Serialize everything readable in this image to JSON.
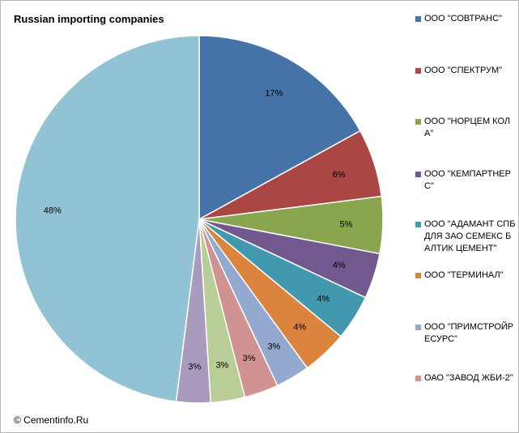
{
  "title": "Russian importing companies",
  "copyright": "© Cementinfo.Ru",
  "chart_data": {
    "type": "pie",
    "title": "Russian importing companies",
    "legend_position": "right",
    "slices": [
      {
        "name": "ООО \"СОВТРАНС\"",
        "value": 17,
        "label": "17%",
        "color": "#4572a7"
      },
      {
        "name": "ООО \"СПЕКТРУМ\"",
        "value": 6,
        "label": "6%",
        "color": "#aa4643"
      },
      {
        "name": "ООО \"НОРЦЕМ КОЛА\"",
        "value": 5,
        "label": "5%",
        "color": "#89a54e"
      },
      {
        "name": "ООО \"КЕМПАРТНЕРС\"",
        "value": 4,
        "label": "4%",
        "color": "#71588f"
      },
      {
        "name": "ООО \"АДАМАНТ СПБ ДЛЯ ЗАО СЕМЕКС БАЛТИК ЦЕМЕНТ\"",
        "value": 4,
        "label": "4%",
        "color": "#4198af"
      },
      {
        "name": "ООО \"ТЕРМИНАЛ\"",
        "value": 4,
        "label": "4%",
        "color": "#db843d"
      },
      {
        "name": "ООО \"ПРИМСТРОЙРЕСУРС\"",
        "value": 3,
        "label": "3%",
        "color": "#93a9cf"
      },
      {
        "name": "ОАО \"ЗАВОД ЖБИ-2\"",
        "value": 3,
        "label": "3%",
        "color": "#d19392"
      },
      {
        "name": "",
        "value": 3,
        "label": "3%",
        "color": "#b9cd96"
      },
      {
        "name": "",
        "value": 3,
        "label": "3%",
        "color": "#a99bbd"
      },
      {
        "name": "",
        "value": 48,
        "label": "48%",
        "color": "#92c3d5"
      }
    ]
  }
}
